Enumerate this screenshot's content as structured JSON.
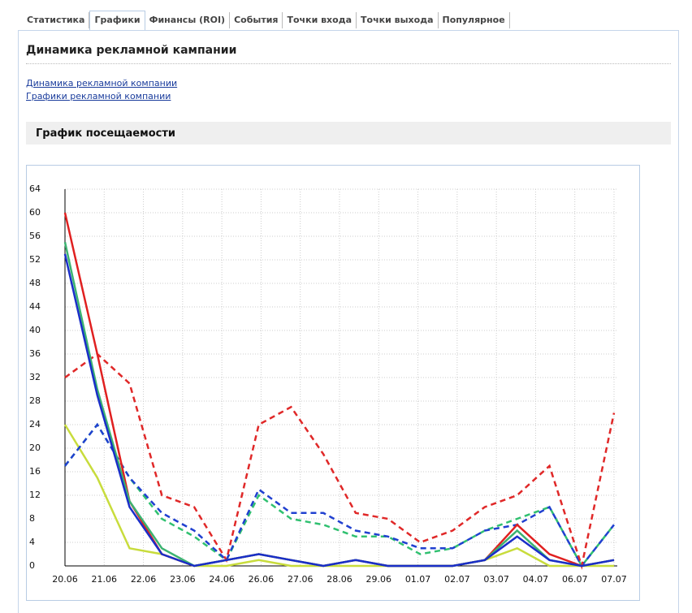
{
  "tabs": [
    "Статистика",
    "Графики",
    "Финансы (ROI)",
    "События",
    "Точки входа",
    "Точки выхода",
    "Популярное"
  ],
  "active_tab": 1,
  "heading": "Динамика рекламной кампании",
  "links": [
    "Динамика рекламной компании",
    "Графики рекламной компании"
  ],
  "section_title": "График посещаемости",
  "chart_data": {
    "type": "line",
    "x_labels": [
      "20.06",
      "21.06",
      "22.06",
      "23.06",
      "24.06",
      "26.06",
      "27.06",
      "28.06",
      "29.06",
      "01.07",
      "02.07",
      "03.07",
      "04.07",
      "06.07",
      "07.07"
    ],
    "ylim": [
      0,
      64
    ],
    "yticks": [
      0,
      4,
      8,
      12,
      16,
      20,
      24,
      28,
      32,
      36,
      40,
      44,
      48,
      52,
      56,
      60,
      64
    ],
    "grid": true,
    "series": [
      {
        "color": "#c8dc3c",
        "dashed": false,
        "values": [
          24,
          15,
          3,
          2,
          0,
          0,
          1,
          0,
          0,
          0,
          0,
          0,
          0,
          1,
          3,
          0,
          0,
          0
        ]
      },
      {
        "color": "#30c070",
        "dashed": true,
        "values": [
          17,
          24,
          15,
          8,
          5,
          1,
          12,
          8,
          7,
          5,
          5,
          2,
          3,
          6,
          8,
          10,
          0,
          7
        ]
      },
      {
        "color": "#2040d0",
        "dashed": true,
        "values": [
          17,
          24,
          15,
          9,
          6,
          1,
          13,
          9,
          9,
          6,
          5,
          3,
          3,
          6,
          7,
          10,
          0,
          7
        ]
      },
      {
        "color": "#e02828",
        "dashed": true,
        "values": [
          32,
          36,
          31,
          12,
          10,
          1,
          24,
          27,
          19,
          9,
          8,
          4,
          6,
          10,
          12,
          17,
          0,
          26
        ]
      },
      {
        "color": "#e02020",
        "dashed": false,
        "values": [
          60,
          36,
          11,
          2,
          0,
          1,
          2,
          1,
          0,
          1,
          0,
          0,
          0,
          1,
          7,
          2,
          0,
          1
        ]
      },
      {
        "color": "#3cb371",
        "dashed": false,
        "values": [
          55,
          30,
          11,
          3,
          0,
          1,
          2,
          1,
          0,
          1,
          0,
          0,
          0,
          1,
          6,
          1,
          0,
          1
        ]
      },
      {
        "color": "#1a2ec8",
        "dashed": false,
        "values": [
          53,
          29,
          10,
          2,
          0,
          1,
          2,
          1,
          0,
          1,
          0,
          0,
          0,
          1,
          5,
          1,
          0,
          1
        ]
      }
    ]
  }
}
